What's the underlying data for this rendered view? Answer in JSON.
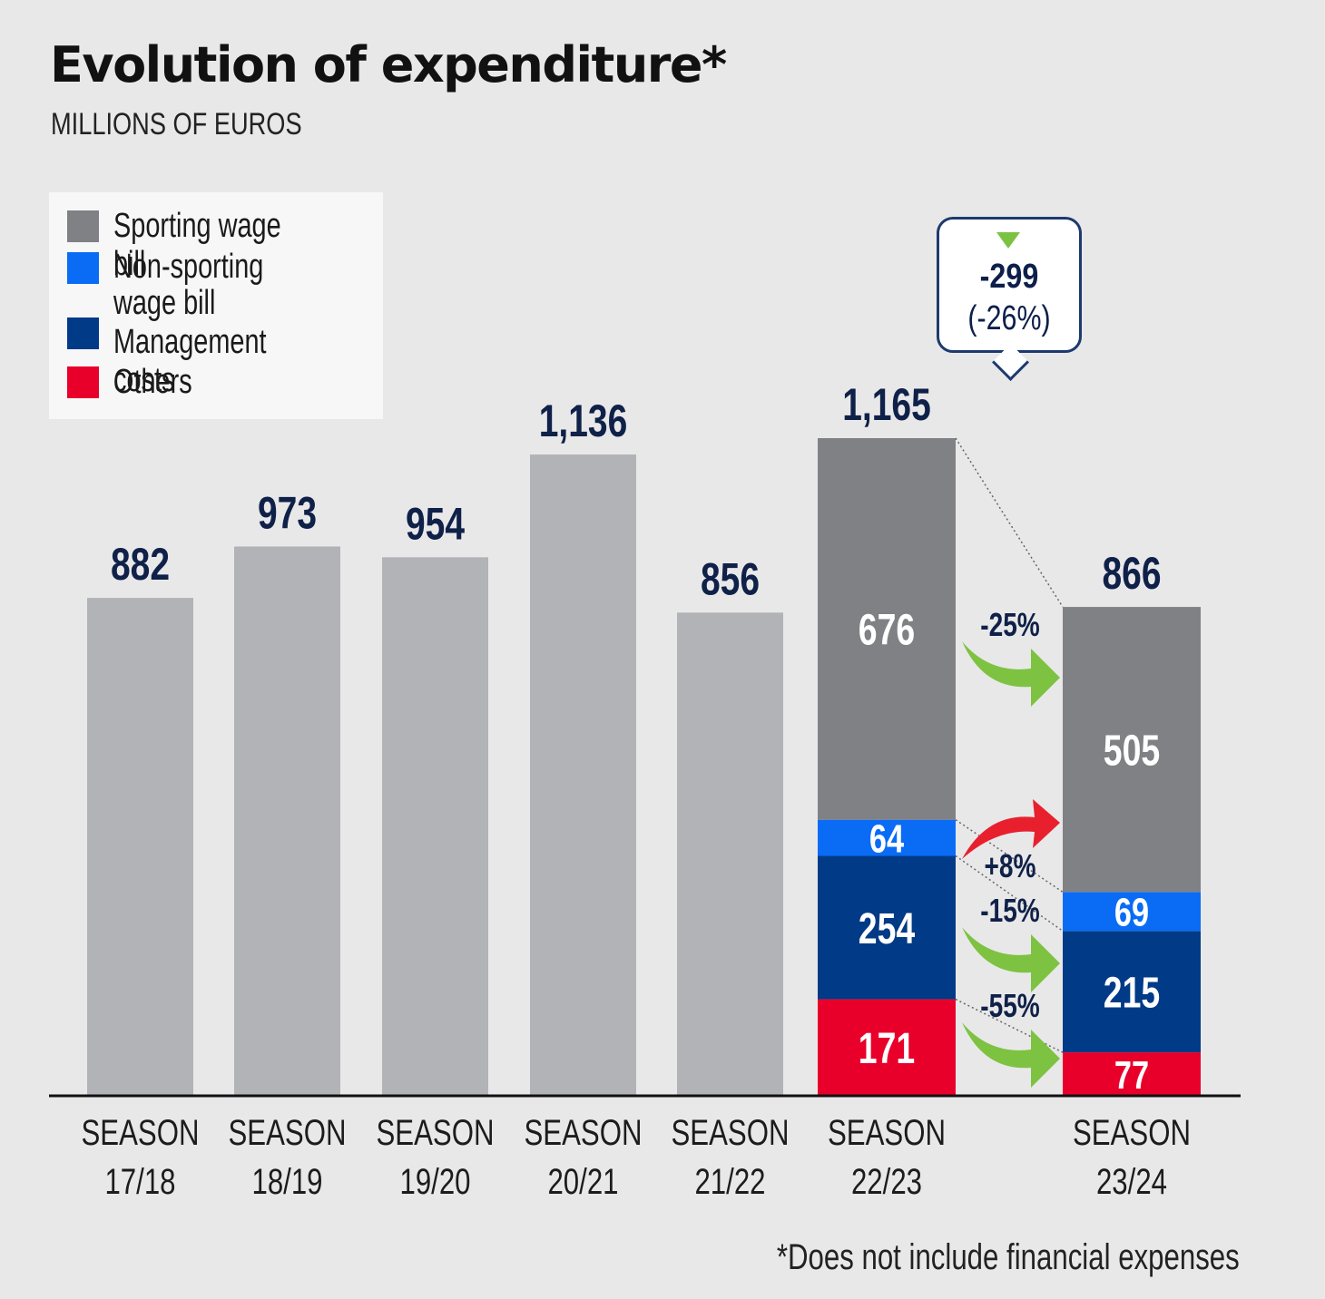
{
  "title": "Evolution of expenditure*",
  "subtitle": "MILLIONS OF EUROS",
  "footnote": "*Does not include financial expenses",
  "legend": [
    {
      "label": "Sporting wage bill",
      "color": "#808185"
    },
    {
      "label": "Non-sporting\nwage bill",
      "color": "#0a6cf5"
    },
    {
      "label": "Management costs",
      "color": "#013a86"
    },
    {
      "label": "Others",
      "color": "#e8002b"
    }
  ],
  "callout": {
    "value": "-299",
    "pct": "(-26%)"
  },
  "colors": {
    "plain_bar": "#b2b3b6",
    "value_label": "#0f2148",
    "increase_arrow": "#e8202e",
    "decrease_arrow": "#7ec242",
    "axis": "#111111"
  },
  "chart_data": {
    "type": "bar",
    "categories": [
      "SEASON\n17/18",
      "SEASON\n18/19",
      "SEASON\n19/20",
      "SEASON\n20/21",
      "SEASON\n21/22",
      "SEASON\n22/23",
      "SEASON\n23/24"
    ],
    "totals": [
      882,
      973,
      954,
      1136,
      856,
      1165,
      866
    ],
    "total_labels": [
      "882",
      "973",
      "954",
      "1,136",
      "856",
      "1,165",
      "866"
    ],
    "stacked": {
      "categories": [
        "SEASON\n22/23",
        "SEASON\n23/24"
      ],
      "series": [
        {
          "name": "Others",
          "values": [
            171,
            77
          ]
        },
        {
          "name": "Management costs",
          "values": [
            254,
            215
          ]
        },
        {
          "name": "Non-sporting wage bill",
          "values": [
            64,
            69
          ]
        },
        {
          "name": "Sporting wage bill",
          "values": [
            676,
            505
          ]
        }
      ]
    },
    "changes": [
      {
        "series": "Sporting wage bill",
        "label": "-25%",
        "direction": "down"
      },
      {
        "series": "Non-sporting wage bill",
        "label": "+8%",
        "direction": "up"
      },
      {
        "series": "Management costs",
        "label": "-15%",
        "direction": "down"
      },
      {
        "series": "Others",
        "label": "-55%",
        "direction": "down"
      }
    ],
    "ylim": [
      0,
      1165
    ],
    "legend_position": "top-left"
  }
}
